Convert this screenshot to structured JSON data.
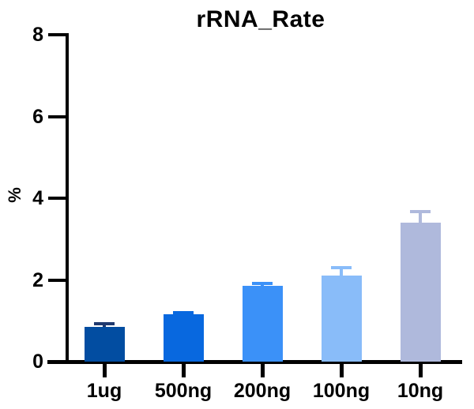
{
  "chart_data": {
    "type": "bar",
    "title": "rRNA_Rate",
    "ylabel": "%",
    "xlabel": "",
    "categories": [
      "1ug",
      "500ng",
      "200ng",
      "100ng",
      "10ng"
    ],
    "values": [
      0.85,
      1.15,
      1.85,
      2.1,
      3.4
    ],
    "errors": [
      0.08,
      0.04,
      0.06,
      0.2,
      0.27
    ],
    "error_style": "upper-only-sd",
    "bar_colors": [
      "#024DA1",
      "#0868DF",
      "#3B91F8",
      "#89BCF9",
      "#AFB9DC"
    ],
    "error_colors": [
      "#203A6F",
      "#0868DF",
      "#3B91F8",
      "#89BCF9",
      "#AFB9DC"
    ],
    "ylim": [
      0,
      8
    ],
    "yticks": [
      0,
      2,
      4,
      6,
      8
    ],
    "grid": false,
    "legend_position": "none",
    "axis_color": "#000000",
    "text_color": "#000000",
    "background_color": "#ffffff"
  }
}
